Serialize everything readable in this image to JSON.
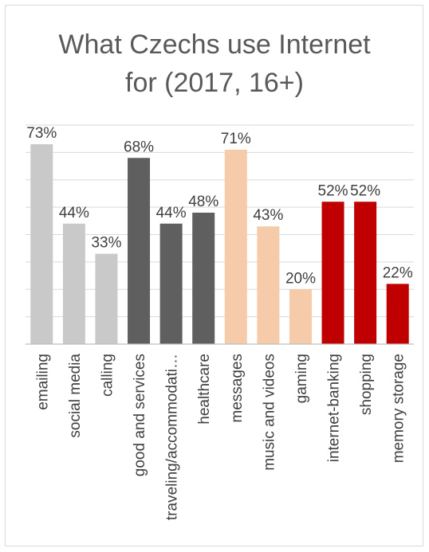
{
  "chart_data": {
    "type": "bar",
    "title_lines": [
      "What Czechs use Internet",
      "for (2017, 16+)"
    ],
    "categories": [
      "emailing",
      "social media",
      "calling",
      "good and services",
      "traveling/accommodati…",
      "healthcare",
      "messages",
      "music and videos",
      "gaming",
      "internet-banking",
      "shopping",
      "memory storage"
    ],
    "values": [
      73,
      44,
      33,
      68,
      44,
      48,
      71,
      43,
      20,
      52,
      52,
      22
    ],
    "value_labels": [
      "73%",
      "44%",
      "33%",
      "68%",
      "44%",
      "48%",
      "71%",
      "43%",
      "20%",
      "52%",
      "52%",
      "22%"
    ],
    "bar_colors": [
      "#c9c9c9",
      "#c9c9c9",
      "#c9c9c9",
      "#5f5f5f",
      "#5f5f5f",
      "#5f5f5f",
      "#f6cba9",
      "#f6cba9",
      "#f6cba9",
      "#c00000",
      "#c00000",
      "#c00000"
    ],
    "ylim": [
      0,
      80
    ],
    "gridline_step": 10,
    "grid": true,
    "legend": "none",
    "xlabel": "",
    "ylabel": ""
  }
}
